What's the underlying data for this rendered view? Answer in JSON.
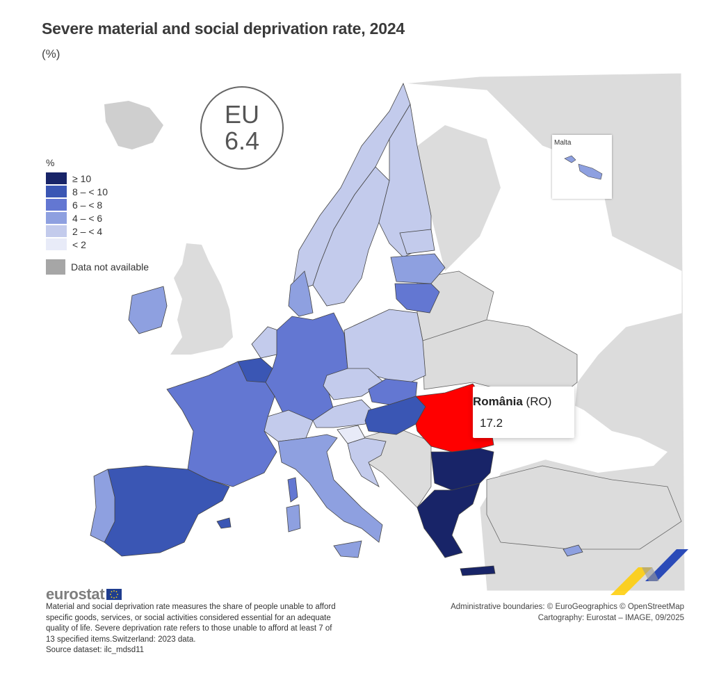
{
  "title": "Severe material and social deprivation rate, 2024",
  "subtitle": "(%)",
  "eu_badge": {
    "label": "EU",
    "value": "6.4"
  },
  "legend": {
    "unit": "%",
    "classes": [
      {
        "label": "≥ 10",
        "color": "#182468"
      },
      {
        "label": "8 – < 10",
        "color": "#3a56b4"
      },
      {
        "label": "6 – < 8",
        "color": "#6377d2"
      },
      {
        "label": "4 – < 6",
        "color": "#8ea0e0"
      },
      {
        "label": "2 – < 4",
        "color": "#c3cbec"
      },
      {
        "label": "< 2",
        "color": "#e8ebf8"
      }
    ],
    "not_available": {
      "label": "Data not available",
      "color": "#a6a6a6"
    }
  },
  "colors": {
    "non_eu": "#dcdcdc",
    "sea": "#ffffff",
    "highlight": "#ff0000",
    "border": "#444444"
  },
  "inset": {
    "label": "Malta"
  },
  "tooltip": {
    "name": "România",
    "code": "(RO)",
    "value": "17.2"
  },
  "footer": {
    "logo": "eurostat",
    "note": "Material and social deprivation rate measures the share of people unable to afford specific goods, services, or social activities considered essential for an adequate quality of life. Severe deprivation rate refers to those unable to afford at least 7 of 13 specified items.Switzerland: 2023 data.",
    "source": "Source dataset: ilc_mdsd11",
    "credits_1": "Administrative boundaries: © EuroGeographics © OpenStreetMap",
    "credits_2": "Cartography: Eurostat – IMAGE, 09/2025"
  }
}
